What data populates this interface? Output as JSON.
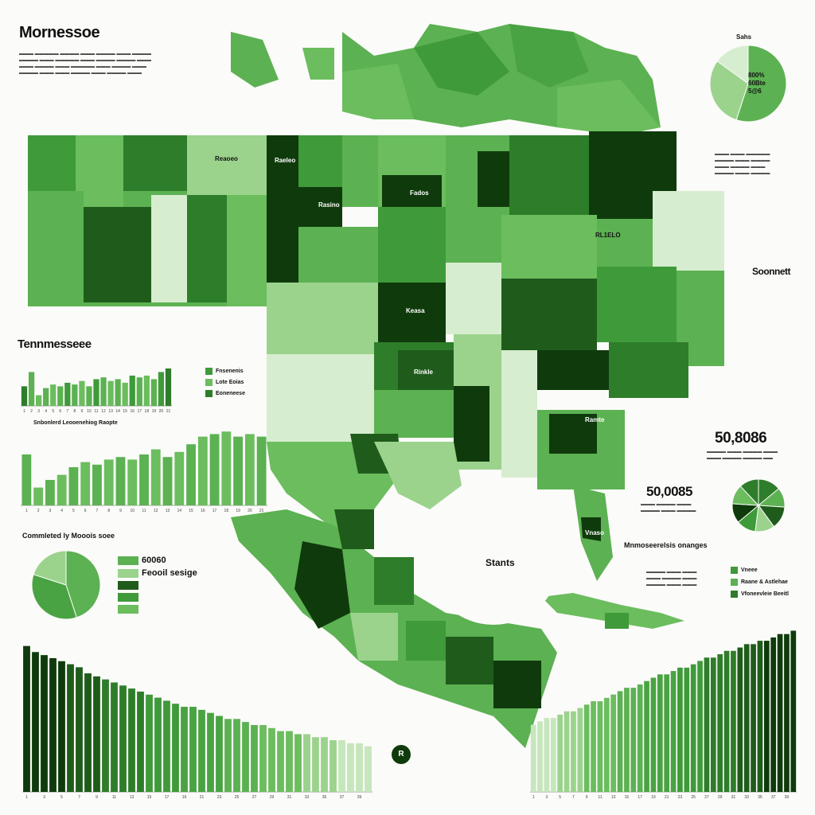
{
  "titles": {
    "main": "Mornessoe",
    "left_mid": "Tennmesseee",
    "right": "Soonnett",
    "big_number_1": "50,8086",
    "big_number_2": "50,0085",
    "gulf_label": "Stants",
    "pie_left_title": "Commleted ly Mooois soee",
    "pie_right_title": "Mnmoseerelsis onanges",
    "legend_big": "60060",
    "legend_big_2": "Feooil sesige",
    "small_pie_top_label": "Sahs"
  },
  "legend_right_bottom": [
    {
      "label": "Vneee",
      "color": "#3f9a3a"
    },
    {
      "label": "Raane & Astlehae",
      "color": "#5cb152"
    },
    {
      "label": "Vfoneevleie Beeitl",
      "color": "#2e7d2a"
    }
  ],
  "legend_top_chart": [
    {
      "label": "Fnsenenis",
      "color": "#3f9a3a"
    },
    {
      "label": "Lote Eoias",
      "color": "#6bbd5e"
    },
    {
      "label": "Eoneneese",
      "color": "#2e7d2a"
    }
  ],
  "pie_top_right": {
    "labels": [
      "800%",
      "60Bte",
      "5@6"
    ]
  },
  "map_labels": {
    "label_a": "Reaoeo",
    "label_b": "Raeleo",
    "label_c": "Fados",
    "label_d": "Rasino",
    "label_e": "Keasa",
    "label_f": "Rinkle",
    "label_g": "Ramte",
    "label_h": "Vnaso",
    "label_i": "RL1ELO"
  },
  "chart_data": [
    {
      "type": "bar",
      "title": "",
      "categories": [
        "1",
        "2",
        "3",
        "4",
        "5",
        "6",
        "7",
        "8",
        "9",
        "10",
        "11",
        "12",
        "13",
        "14",
        "15",
        "16",
        "17",
        "18",
        "19",
        "20",
        "21"
      ],
      "values": [
        22,
        38,
        12,
        20,
        24,
        22,
        26,
        24,
        28,
        22,
        30,
        32,
        28,
        30,
        26,
        34,
        32,
        34,
        30,
        38,
        42
      ],
      "ylim": [
        0,
        50
      ],
      "colors": [
        "#2e7d2a",
        "#5cb152",
        "#6bbd5e",
        "#5cb152",
        "#6bbd5e",
        "#5cb152",
        "#3f9a3a",
        "#5cb152",
        "#6bbd5e",
        "#5cb152",
        "#3f9a3a",
        "#5cb152",
        "#6bbd5e",
        "#5cb152",
        "#6bbd5e",
        "#3f9a3a",
        "#5cb152",
        "#6bbd5e",
        "#5cb152",
        "#3f9a3a",
        "#2e7d2a"
      ]
    },
    {
      "type": "bar",
      "title": "Snbonlerd Leooenehiog Raopte",
      "categories": [
        "1",
        "2",
        "3",
        "4",
        "5",
        "6",
        "7",
        "8",
        "9",
        "10",
        "11",
        "12",
        "13",
        "14",
        "15",
        "16",
        "17",
        "18",
        "19",
        "20",
        "21"
      ],
      "values": [
        40,
        14,
        20,
        24,
        30,
        34,
        32,
        36,
        38,
        36,
        40,
        44,
        38,
        42,
        48,
        54,
        56,
        58,
        54,
        56,
        54
      ],
      "ylim": [
        0,
        60
      ],
      "colors": [
        "#5cb152",
        "#6bbd5e",
        "#5cb152",
        "#6bbd5e",
        "#5cb152",
        "#6bbd5e",
        "#5cb152",
        "#6bbd5e",
        "#5cb152",
        "#6bbd5e",
        "#5cb152",
        "#6bbd5e",
        "#5cb152",
        "#6bbd5e",
        "#5cb152",
        "#6bbd5e",
        "#5cb152",
        "#6bbd5e",
        "#5cb152",
        "#6bbd5e",
        "#5cb152"
      ]
    },
    {
      "type": "bar",
      "title": "",
      "categories": [
        "1",
        "2",
        "3",
        "4",
        "5",
        "6",
        "7",
        "8",
        "9",
        "10",
        "11",
        "12",
        "13",
        "14",
        "15",
        "16",
        "17",
        "18",
        "19",
        "20",
        "21",
        "22",
        "23",
        "24",
        "25",
        "26",
        "27",
        "28",
        "29",
        "30",
        "31",
        "32",
        "33",
        "34",
        "35",
        "36",
        "37",
        "38",
        "39",
        "40"
      ],
      "values": [
        96,
        92,
        90,
        88,
        86,
        84,
        82,
        78,
        76,
        74,
        72,
        70,
        68,
        66,
        64,
        62,
        60,
        58,
        56,
        56,
        54,
        52,
        50,
        48,
        48,
        46,
        44,
        44,
        42,
        40,
        40,
        38,
        38,
        36,
        36,
        34,
        34,
        32,
        32,
        30
      ],
      "ylim": [
        0,
        100
      ]
    },
    {
      "type": "bar",
      "title": "",
      "categories": [
        "1",
        "2",
        "3",
        "4",
        "5",
        "6",
        "7",
        "8",
        "9",
        "10",
        "11",
        "12",
        "13",
        "14",
        "15",
        "16",
        "17",
        "18",
        "19",
        "20",
        "21",
        "22",
        "23",
        "24",
        "25",
        "26",
        "27",
        "28",
        "29",
        "30",
        "31",
        "32",
        "33",
        "34",
        "35",
        "36",
        "37",
        "38",
        "39",
        "40"
      ],
      "values": [
        40,
        42,
        44,
        44,
        46,
        48,
        48,
        50,
        52,
        54,
        54,
        56,
        58,
        60,
        62,
        62,
        64,
        66,
        68,
        70,
        70,
        72,
        74,
        74,
        76,
        78,
        80,
        80,
        82,
        84,
        84,
        86,
        88,
        88,
        90,
        90,
        92,
        94,
        94,
        96
      ],
      "ylim": [
        0,
        100
      ]
    },
    {
      "type": "pie",
      "title": "Commleted ly Mooois soee",
      "values": [
        45,
        35,
        20
      ],
      "colors": [
        "#5cb152",
        "#4aa343",
        "#9bd38d"
      ]
    },
    {
      "type": "pie",
      "title": "",
      "values": [
        55,
        30,
        15
      ],
      "colors": [
        "#5cb152",
        "#9bd38d",
        "#d7edcf"
      ]
    },
    {
      "type": "pie",
      "title": "",
      "values": [
        14,
        12,
        14,
        12,
        12,
        12,
        12,
        12
      ],
      "colors": [
        "#2e7d2a",
        "#5cb152",
        "#1f5c1b",
        "#9bd38d",
        "#3f9a3a",
        "#0f3b0c",
        "#6bbd5e",
        "#2e7d2a"
      ]
    }
  ]
}
